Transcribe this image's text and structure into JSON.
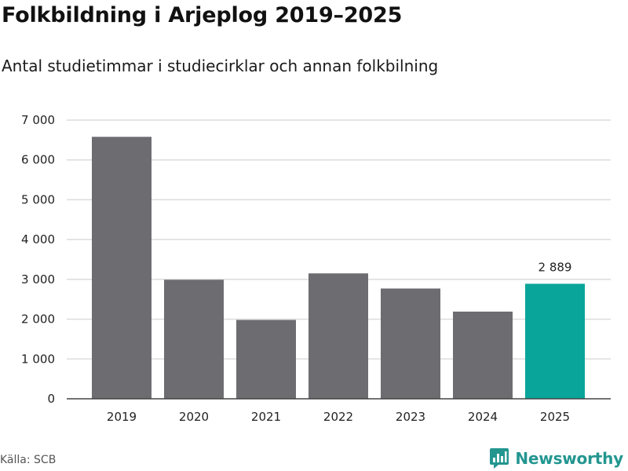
{
  "header": {
    "title": "Folkbildning i Arjeplog 2019–2025",
    "subtitle": "Antal studietimmar i studiecirklar och annan folkbilning"
  },
  "footer": {
    "source": "Källa: SCB",
    "brand": "Newsworthy"
  },
  "colors": {
    "bar_default": "#6d6c71",
    "bar_highlight": "#0aa59a",
    "gridline": "#dcdcdc",
    "axis": "#444444",
    "brand": "#239690"
  },
  "chart_data": {
    "type": "bar",
    "categories": [
      "2019",
      "2020",
      "2021",
      "2022",
      "2023",
      "2024",
      "2025"
    ],
    "values": [
      6580,
      2990,
      1980,
      3150,
      2770,
      2190,
      2889
    ],
    "highlight_index": 6,
    "data_labels": [
      {
        "index": 6,
        "text": "2 889"
      }
    ],
    "ylim": [
      0,
      7000
    ],
    "yticks": [
      {
        "value": 0,
        "label": "0"
      },
      {
        "value": 1000,
        "label": "1 000"
      },
      {
        "value": 2000,
        "label": "2 000"
      },
      {
        "value": 3000,
        "label": "3 000"
      },
      {
        "value": 4000,
        "label": "4 000"
      },
      {
        "value": 5000,
        "label": "5 000"
      },
      {
        "value": 6000,
        "label": "6 000"
      },
      {
        "value": 7000,
        "label": "7 000"
      }
    ],
    "grid": true,
    "legend": "none"
  }
}
